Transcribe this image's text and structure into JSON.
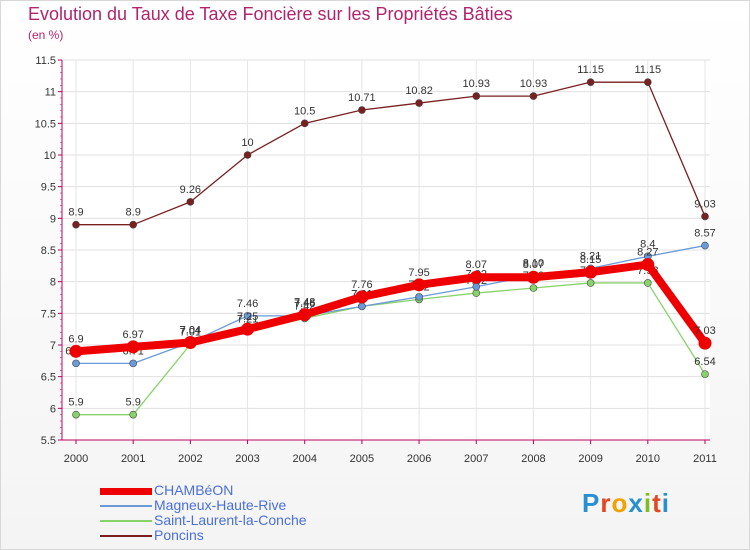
{
  "header": {
    "title": "Evolution du Taux de Taxe Foncière sur les Propriétés Bâties",
    "subtitle": "(en %)"
  },
  "logo": {
    "letters": [
      "P",
      "r",
      "o",
      "x",
      "i",
      "t",
      "i"
    ],
    "colors": [
      "#2a8fd0",
      "#e4461e",
      "#f2a100",
      "#2a8fd0",
      "#7dbd1f",
      "#e4461e",
      "#2a8fd0"
    ]
  },
  "chart_data": {
    "type": "line",
    "title": "Evolution du Taux de Taxe Foncière sur les Propriétés Bâties",
    "ylabel": "(en %)",
    "xlabel": "",
    "categories": [
      "2000",
      "2001",
      "2002",
      "2003",
      "2004",
      "2005",
      "2006",
      "2007",
      "2008",
      "2009",
      "2010",
      "2011"
    ],
    "ylim": [
      5.5,
      11.5
    ],
    "yticks": [
      "5.5",
      "6",
      "6.5",
      "7",
      "7.5",
      "8",
      "8.5",
      "9",
      "9.5",
      "10",
      "10.5",
      "11",
      "11.5"
    ],
    "grid": true,
    "legend_position": "bottom-left",
    "series": [
      {
        "name": "Poncins",
        "color": "#7a2020",
        "values": [
          8.9,
          8.9,
          9.26,
          10,
          10.5,
          10.71,
          10.82,
          10.93,
          10.93,
          11.15,
          11.15,
          9.03
        ],
        "labels": [
          "8.9",
          "8.9",
          "9.26",
          "10",
          "10.5",
          "10.71",
          "10.82",
          "10.93",
          "10.93",
          "11.15",
          "11.15",
          "9.03"
        ]
      },
      {
        "name": "Saint-Laurent-la-Conche",
        "color": "#88d26a",
        "values": [
          5.9,
          5.9,
          7.01,
          7.21,
          7.42,
          7.61,
          7.72,
          7.82,
          7.9,
          7.98,
          7.98,
          6.54
        ],
        "labels": [
          "5.9",
          "5.9",
          "7.01",
          "7.21",
          "7.42",
          "7.61",
          "7.72",
          "7.82",
          "7.90",
          "7.98",
          "7.98",
          "6.54"
        ]
      },
      {
        "name": "Magneux-Haute-Rive",
        "color": "#6a9bd8",
        "values": [
          6.71,
          6.71,
          7.04,
          7.46,
          7.46,
          7.61,
          7.76,
          7.92,
          8.1,
          8.21,
          8.4,
          8.57
        ],
        "labels": [
          "6.71",
          "6.71",
          "7.04",
          "7.46",
          "7.46",
          "7.61",
          "7.76",
          "7.92",
          "8.10",
          "8.21",
          "8.4",
          "8.57"
        ]
      },
      {
        "name": "CHAMBéON",
        "color": "#ee0000",
        "values": [
          6.9,
          6.97,
          7.04,
          7.25,
          7.48,
          7.76,
          7.95,
          8.07,
          8.07,
          8.15,
          8.27,
          7.03
        ],
        "labels": [
          "6.9",
          "6.97",
          "7.04",
          "7.25",
          "7.48",
          "7.76",
          "7.95",
          "8.07",
          "8.07",
          "8.15",
          "8.27",
          "7.03"
        ]
      }
    ]
  },
  "legend": {
    "items": [
      {
        "label": "CHAMBéON",
        "color": "#ee0000"
      },
      {
        "label": "Magneux-Haute-Rive",
        "color": "#6a9bd8"
      },
      {
        "label": "Saint-Laurent-la-Conche",
        "color": "#88d26a"
      },
      {
        "label": "Poncins",
        "color": "#7a2020"
      }
    ]
  }
}
